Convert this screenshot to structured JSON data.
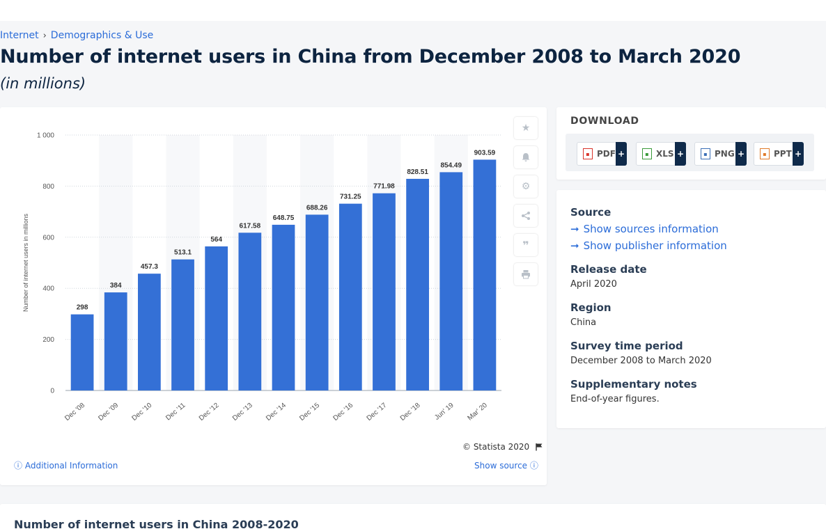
{
  "breadcrumb": {
    "item1": "Internet",
    "separator": "›",
    "item2": "Demographics & Use"
  },
  "page": {
    "title": "Number of internet users in China from December 2008 to March 2020",
    "subtitle": "(in millions)"
  },
  "chart_data": {
    "type": "bar",
    "categories": [
      "Dec '08",
      "Dec '09",
      "Dec '10",
      "Dec '11",
      "Dec '12",
      "Dec '13",
      "Dec '14",
      "Dec '15",
      "Dec '16",
      "Dec '17",
      "Dec '18",
      "Jun' 19",
      "Mar' 20"
    ],
    "values": [
      298,
      384,
      457.3,
      513.1,
      564,
      617.58,
      648.75,
      688.26,
      731.25,
      771.98,
      828.51,
      854.49,
      903.59
    ],
    "data_labels": [
      "298",
      "384",
      "457.3",
      "513.1",
      "564",
      "617.58",
      "648.75",
      "688.26",
      "731.25",
      "771.98",
      "828.51",
      "854.49",
      "903.59"
    ],
    "ylabel": "Number of internet users in millions",
    "xlabel": "",
    "ylim": [
      0,
      1000
    ],
    "yticks": [
      0,
      200,
      400,
      600,
      800,
      1000
    ],
    "ytick_labels": [
      "0",
      "200",
      "400",
      "600",
      "800",
      "1 000"
    ],
    "bar_color": "#3470d6",
    "grid": true
  },
  "chart_footer": {
    "copyright": "© Statista 2020",
    "additional_info": "Additional Information",
    "show_source": "Show source"
  },
  "toolbar": {
    "icons": [
      "star-icon",
      "bell-icon",
      "gear-icon",
      "share-icon",
      "quote-icon",
      "print-icon"
    ]
  },
  "download": {
    "title": "DOWNLOAD",
    "buttons": [
      {
        "label": "PDF",
        "color": "#d9342b"
      },
      {
        "label": "XLS",
        "color": "#3a9a3a"
      },
      {
        "label": "PNG",
        "color": "#3b6fb6"
      },
      {
        "label": "PPT",
        "color": "#e07b2a"
      }
    ],
    "plus": "+"
  },
  "info": {
    "source_heading": "Source",
    "show_sources": "Show sources information",
    "show_publisher": "Show publisher information",
    "release_heading": "Release date",
    "release_value": "April 2020",
    "region_heading": "Region",
    "region_value": "China",
    "survey_heading": "Survey time period",
    "survey_value": "December 2008 to March 2020",
    "notes_heading": "Supplementary notes",
    "notes_value": "End-of-year figures."
  },
  "bottom": {
    "title": "Number of internet users in China 2008-2020"
  }
}
